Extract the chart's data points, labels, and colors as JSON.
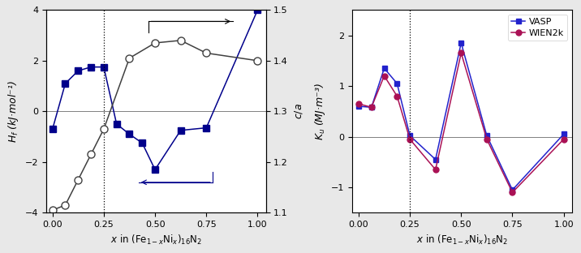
{
  "left": {
    "hf_x": [
      0.0,
      0.0625,
      0.125,
      0.1875,
      0.25,
      0.3125,
      0.375,
      0.4375,
      0.5,
      0.625,
      0.75,
      1.0
    ],
    "hf_y": [
      -0.7,
      1.1,
      1.6,
      1.75,
      1.75,
      -0.5,
      -0.9,
      -1.25,
      -2.3,
      -0.75,
      -0.65,
      4.0
    ],
    "ca_x": [
      0.0,
      0.0625,
      0.125,
      0.1875,
      0.25,
      0.375,
      0.5,
      0.625,
      0.75,
      1.0
    ],
    "ca_y": [
      1.105,
      1.115,
      1.165,
      1.215,
      1.265,
      1.405,
      1.435,
      1.44,
      1.415,
      1.4
    ],
    "ylabel_left": "$H_f$ (kJ·mol⁻¹)",
    "ylabel_right": "$c/a$",
    "xlabel": "$x$ in (Fe$_{1-x}$Ni$_x$)$_{16}$N$_2$",
    "ylim_left": [
      -4,
      4
    ],
    "ylim_right": [
      1.1,
      1.5
    ],
    "vline_x": 0.25,
    "hf_color": "#00008B",
    "ca_color": "#404040"
  },
  "right": {
    "vasp_x": [
      0.0,
      0.0625,
      0.125,
      0.1875,
      0.25,
      0.375,
      0.5,
      0.625,
      0.75,
      1.0
    ],
    "vasp_y": [
      0.6,
      0.58,
      1.35,
      1.05,
      0.02,
      -0.45,
      1.85,
      0.02,
      -1.05,
      0.05
    ],
    "wien_x": [
      0.0,
      0.0625,
      0.125,
      0.1875,
      0.25,
      0.375,
      0.5,
      0.625,
      0.75,
      1.0
    ],
    "wien_y": [
      0.65,
      0.58,
      1.2,
      0.8,
      -0.05,
      -0.65,
      1.65,
      -0.05,
      -1.1,
      -0.05
    ],
    "ylabel": "$K_u$ (MJ·m⁻³)",
    "xlabel": "$x$ in (Fe$_{1-x}$Ni$_x$)$_{16}$N$_2$",
    "ylim": [
      -1.5,
      2.5
    ],
    "yticks": [
      -1,
      0,
      1,
      2
    ],
    "vline_x": 0.25,
    "vasp_color": "#2222CC",
    "wien_color": "#AA1155",
    "legend_vasp": "VASP",
    "legend_wien": "WIEN2k"
  },
  "bg_color": "#e8e8e8",
  "panel_bg": "#ffffff"
}
